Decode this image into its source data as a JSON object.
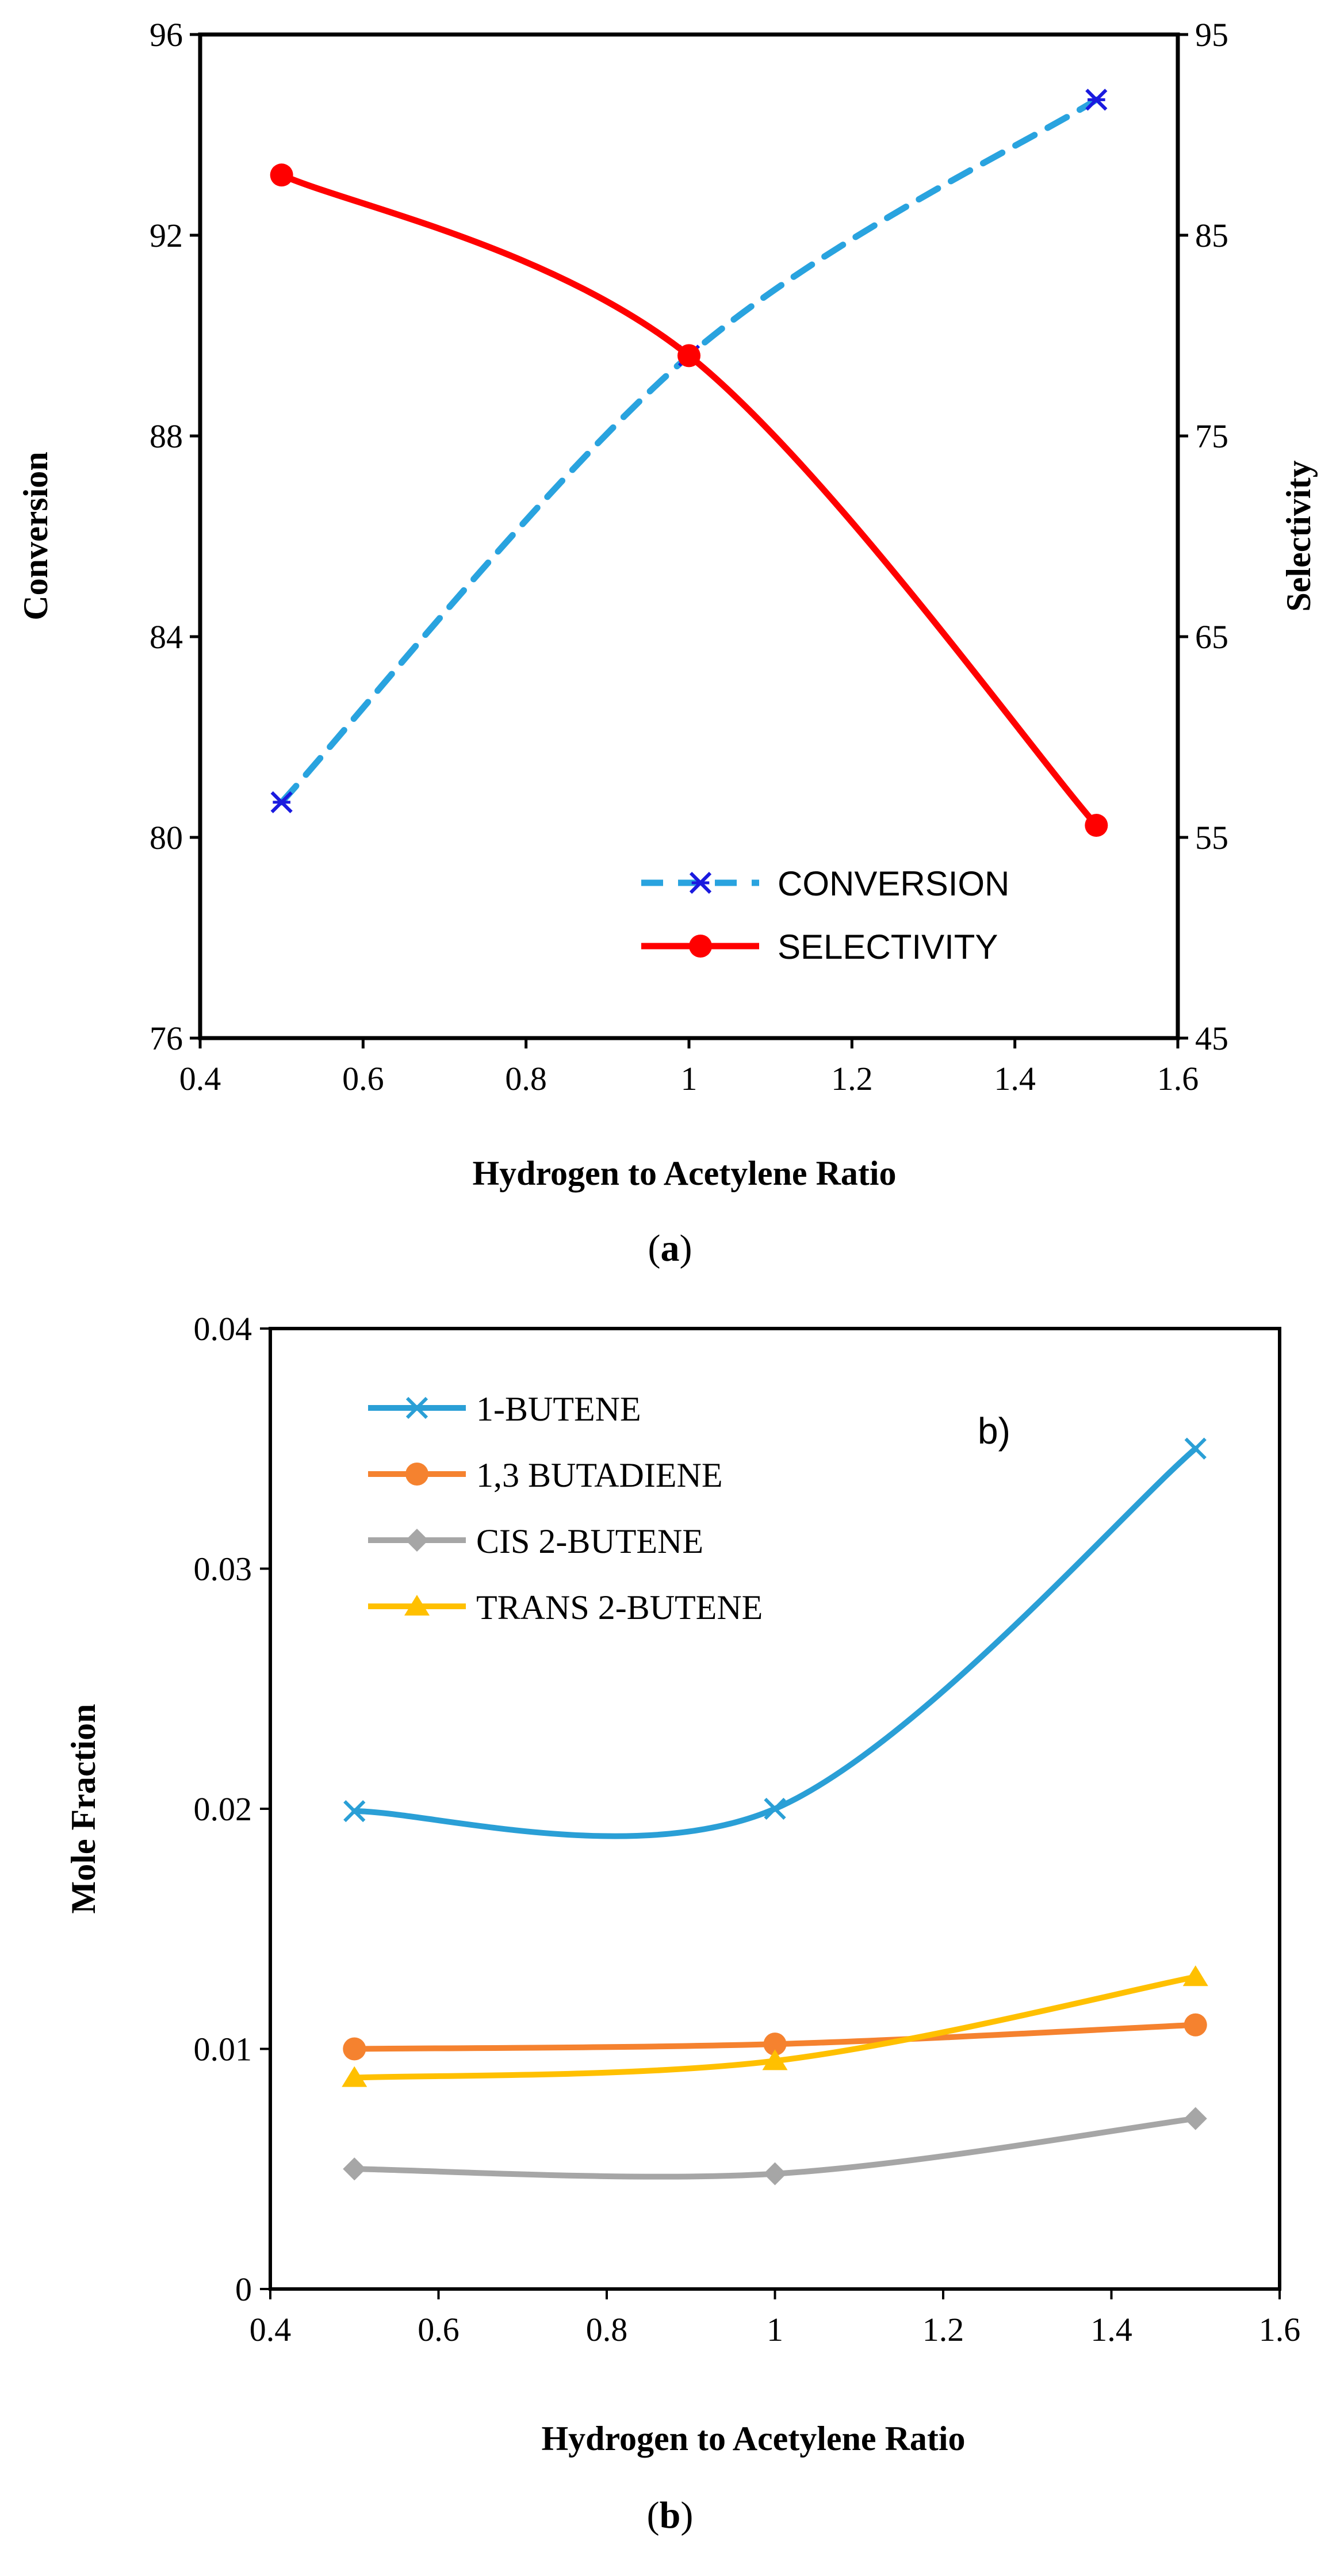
{
  "chart_data": [
    {
      "type": "line",
      "panel": "a",
      "caption_open": "(",
      "caption_letter": "a",
      "caption_close": ")",
      "x": [
        0.5,
        1.0,
        1.5
      ],
      "xlabel": "Hydrogen to Acetylene Ratio",
      "ylabel": "Conversion",
      "y2label": "Selectivity",
      "xlim": [
        0.4,
        1.6
      ],
      "ylim": [
        76,
        96
      ],
      "y2lim": [
        45,
        95
      ],
      "xticks": [
        "0.4",
        "0.6",
        "0.8",
        "1",
        "1.2",
        "1.4",
        "1.6"
      ],
      "yticks": [
        "76",
        "80",
        "84",
        "88",
        "92",
        "96"
      ],
      "y2ticks": [
        "45",
        "55",
        "65",
        "75",
        "85",
        "95"
      ],
      "legend_position": "bottom-right",
      "series": [
        {
          "name": "CONVERSION",
          "axis": "left",
          "values": [
            80.7,
            89.6,
            94.7
          ],
          "color": "#29a3df",
          "marker_color": "#1a1adf",
          "marker": "x-star",
          "dash": true
        },
        {
          "name": "SELECTIVITY",
          "axis": "right",
          "values": [
            88.0,
            79.0,
            55.6
          ],
          "color": "#ff0000",
          "marker_color": "#ff0000",
          "marker": "circle",
          "dash": false
        }
      ]
    },
    {
      "type": "line",
      "panel": "b",
      "caption_open": "(",
      "caption_letter": "b",
      "caption_close": ")",
      "annotation": "b)",
      "x": [
        0.5,
        1.0,
        1.5
      ],
      "xlabel": "Hydrogen to Acetylene Ratio",
      "ylabel": "Mole Fraction",
      "xlim": [
        0.4,
        1.6
      ],
      "ylim": [
        0,
        0.04
      ],
      "xticks": [
        "0.4",
        "0.6",
        "0.8",
        "1",
        "1.2",
        "1.4",
        "1.6"
      ],
      "yticks": [
        "0",
        "0.01",
        "0.02",
        "0.03",
        "0.04"
      ],
      "legend_position": "top-left",
      "series": [
        {
          "name": "1-BUTENE",
          "values": [
            0.0199,
            0.02,
            0.035
          ],
          "color": "#2a9fd6",
          "marker": "x"
        },
        {
          "name": "1,3 BUTADIENE",
          "values": [
            0.01,
            0.0102,
            0.011
          ],
          "color": "#f5822f",
          "marker": "circle"
        },
        {
          "name": "CIS 2-BUTENE",
          "values": [
            0.005,
            0.0048,
            0.0071
          ],
          "color": "#a6a6a6",
          "marker": "diamond"
        },
        {
          "name": "TRANS 2-BUTENE",
          "values": [
            0.0088,
            0.0095,
            0.013
          ],
          "color": "#ffc000",
          "marker": "triangle"
        }
      ]
    }
  ]
}
